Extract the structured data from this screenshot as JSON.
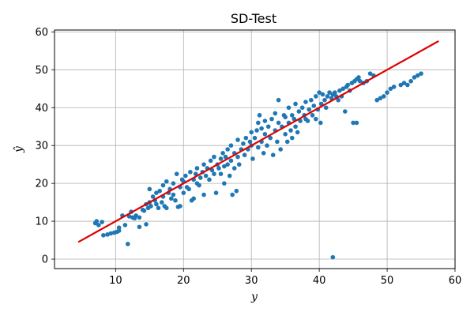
{
  "chart_data": {
    "type": "scatter",
    "title": "SD-Test",
    "xlabel": "y",
    "ylabel": "ŷ",
    "xlim": [
      1,
      60
    ],
    "ylim": [
      -2.5,
      60.5
    ],
    "xticks": [
      10,
      20,
      30,
      40,
      50,
      60
    ],
    "yticks": [
      0,
      10,
      20,
      30,
      40,
      50,
      60
    ],
    "grid": true,
    "point_color": "#1f77b4",
    "line_color": "#e00000",
    "reference_line": {
      "x": [
        4.6,
        57.5
      ],
      "y": [
        4.6,
        57.5
      ]
    },
    "points": [
      [
        7,
        9.5
      ],
      [
        7.2,
        10
      ],
      [
        7.5,
        9
      ],
      [
        8,
        9.8
      ],
      [
        8.2,
        6.3
      ],
      [
        8.8,
        6.5
      ],
      [
        9.3,
        6.8
      ],
      [
        9.8,
        7
      ],
      [
        10.2,
        7.2
      ],
      [
        10.5,
        7.5
      ],
      [
        10.5,
        8.3
      ],
      [
        11,
        11.5
      ],
      [
        11.4,
        9
      ],
      [
        11.8,
        4
      ],
      [
        12,
        11.3
      ],
      [
        12.3,
        12.5
      ],
      [
        12.5,
        11
      ],
      [
        12.8,
        10.8
      ],
      [
        13,
        11.5
      ],
      [
        13.5,
        11
      ],
      [
        13.5,
        8.5
      ],
      [
        14,
        13
      ],
      [
        14.2,
        12.8
      ],
      [
        14.5,
        14.5
      ],
      [
        14.5,
        9.2
      ],
      [
        14.8,
        13.5
      ],
      [
        15,
        15
      ],
      [
        15,
        18.5
      ],
      [
        15.2,
        14
      ],
      [
        15.5,
        16.5
      ],
      [
        15.8,
        15.5
      ],
      [
        16,
        14.5
      ],
      [
        16,
        17.5
      ],
      [
        16.3,
        13.5
      ],
      [
        16.5,
        18
      ],
      [
        16.8,
        15
      ],
      [
        17,
        16.5
      ],
      [
        17,
        19.5
      ],
      [
        17.2,
        14
      ],
      [
        17.5,
        13.5
      ],
      [
        17.5,
        20.5
      ],
      [
        17.8,
        17.5
      ],
      [
        18,
        18.5
      ],
      [
        18.2,
        16
      ],
      [
        18.5,
        17
      ],
      [
        18.5,
        20
      ],
      [
        18.8,
        15.5
      ],
      [
        19,
        22.5
      ],
      [
        19.2,
        13.8
      ],
      [
        19.5,
        19
      ],
      [
        19.5,
        14
      ],
      [
        19.8,
        21
      ],
      [
        20,
        20.5
      ],
      [
        20,
        17.5
      ],
      [
        20.3,
        22
      ],
      [
        20.5,
        19
      ],
      [
        20.8,
        18.5
      ],
      [
        21,
        23
      ],
      [
        21.2,
        15.5
      ],
      [
        21.5,
        21
      ],
      [
        21.5,
        16
      ],
      [
        21.8,
        22.5
      ],
      [
        22,
        20
      ],
      [
        22,
        24
      ],
      [
        22.3,
        19.5
      ],
      [
        22.5,
        21.5
      ],
      [
        22.8,
        23
      ],
      [
        23,
        25
      ],
      [
        23,
        17
      ],
      [
        23.3,
        22
      ],
      [
        23.5,
        24
      ],
      [
        23.8,
        21
      ],
      [
        24,
        26
      ],
      [
        24.2,
        23.5
      ],
      [
        24.5,
        22.5
      ],
      [
        24.5,
        27
      ],
      [
        24.8,
        17.5
      ],
      [
        25,
        25
      ],
      [
        25.2,
        24
      ],
      [
        25.5,
        26.5
      ],
      [
        25.5,
        22.5
      ],
      [
        25.8,
        28
      ],
      [
        26,
        24.5
      ],
      [
        26,
        20
      ],
      [
        26.2,
        27
      ],
      [
        26.5,
        25
      ],
      [
        26.5,
        29
      ],
      [
        26.8,
        22
      ],
      [
        27,
        26
      ],
      [
        27,
        30
      ],
      [
        27.2,
        17
      ],
      [
        27.5,
        24
      ],
      [
        27.5,
        28
      ],
      [
        27.8,
        18
      ],
      [
        28,
        27
      ],
      [
        28,
        31.5
      ],
      [
        28.2,
        25
      ],
      [
        28.5,
        29
      ],
      [
        28.8,
        30.5
      ],
      [
        29,
        27.5
      ],
      [
        29.2,
        32
      ],
      [
        29.5,
        29
      ],
      [
        29.8,
        31
      ],
      [
        30,
        30
      ],
      [
        30,
        33.5
      ],
      [
        30.2,
        26.5
      ],
      [
        30.5,
        32
      ],
      [
        30.8,
        34
      ],
      [
        31,
        29.5
      ],
      [
        31,
        36
      ],
      [
        31.2,
        38
      ],
      [
        31.5,
        31
      ],
      [
        31.5,
        34.5
      ],
      [
        31.8,
        28
      ],
      [
        32,
        33
      ],
      [
        32,
        36.5
      ],
      [
        32.3,
        30
      ],
      [
        32.5,
        35
      ],
      [
        32.8,
        32
      ],
      [
        33,
        37
      ],
      [
        33.2,
        27.5
      ],
      [
        33.5,
        34
      ],
      [
        33.5,
        38.5
      ],
      [
        33.8,
        31
      ],
      [
        34,
        36
      ],
      [
        34,
        42
      ],
      [
        34.3,
        29
      ],
      [
        34.5,
        35
      ],
      [
        34.8,
        38
      ],
      [
        35,
        33
      ],
      [
        35,
        37.5
      ],
      [
        35.3,
        31
      ],
      [
        35.5,
        36
      ],
      [
        35.5,
        40
      ],
      [
        35.8,
        34
      ],
      [
        36,
        38
      ],
      [
        36,
        32
      ],
      [
        36.3,
        37
      ],
      [
        36.5,
        35
      ],
      [
        36.5,
        41
      ],
      [
        36.8,
        33.5
      ],
      [
        37,
        39
      ],
      [
        37.2,
        36.5
      ],
      [
        37.5,
        40
      ],
      [
        37.8,
        38
      ],
      [
        38,
        37
      ],
      [
        38,
        41.5
      ],
      [
        38.3,
        36.5
      ],
      [
        38.5,
        39.5
      ],
      [
        38.8,
        42
      ],
      [
        39,
        38
      ],
      [
        39.2,
        40.5
      ],
      [
        39.5,
        37
      ],
      [
        39.5,
        43
      ],
      [
        39.8,
        39.5
      ],
      [
        40,
        44
      ],
      [
        40.2,
        36
      ],
      [
        40.3,
        41
      ],
      [
        40.5,
        43.5
      ],
      [
        40.8,
        42
      ],
      [
        41,
        40
      ],
      [
        41.2,
        43
      ],
      [
        41.5,
        44
      ],
      [
        41.8,
        42.5
      ],
      [
        42,
        43.5
      ],
      [
        42,
        0.5
      ],
      [
        42.3,
        44
      ],
      [
        42.5,
        43
      ],
      [
        42.8,
        42
      ],
      [
        43,
        44.5
      ],
      [
        43.3,
        43
      ],
      [
        43.5,
        45
      ],
      [
        43.8,
        39
      ],
      [
        44,
        45.5
      ],
      [
        44.2,
        46
      ],
      [
        44.5,
        44.5
      ],
      [
        44.8,
        46.5
      ],
      [
        45,
        36
      ],
      [
        45.2,
        47
      ],
      [
        45.5,
        47.5
      ],
      [
        45.5,
        36
      ],
      [
        45.8,
        48
      ],
      [
        46,
        47
      ],
      [
        46.5,
        46.5
      ],
      [
        47,
        47
      ],
      [
        47.5,
        49
      ],
      [
        48,
        48.5
      ],
      [
        48.5,
        42
      ],
      [
        49,
        42.5
      ],
      [
        49.5,
        43
      ],
      [
        50,
        44
      ],
      [
        50.5,
        45
      ],
      [
        51,
        45.5
      ],
      [
        52,
        46
      ],
      [
        52.5,
        46.5
      ],
      [
        53,
        46
      ],
      [
        53.5,
        47
      ],
      [
        54,
        48
      ],
      [
        54.5,
        48.5
      ],
      [
        55,
        49
      ]
    ]
  }
}
